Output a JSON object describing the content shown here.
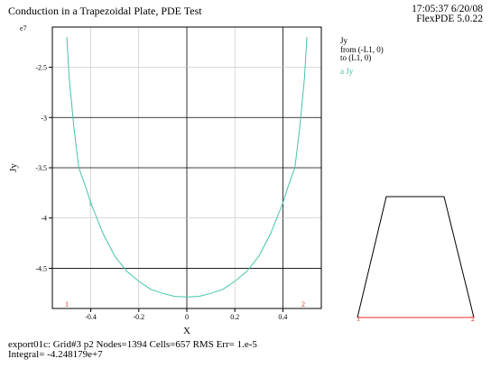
{
  "header": {
    "title": "Conduction in a Trapezoidal Plate, PDE Test",
    "time": "17:05:37 6/20/08",
    "version": "FlexPDE 5.0.22"
  },
  "legend": {
    "variable": "Jy",
    "from": "from (-L1, 0)",
    "to": "to (L1, 0)",
    "series_marker": "a",
    "series_name": "Jy"
  },
  "footer": {
    "line1": "export01c:  Grid#3  p2  Nodes=1394 Cells=657 RMS Err= 1.e-5",
    "line2": "Integral= -4.248179e+7"
  },
  "colors": {
    "curve": "#44c4a8",
    "endpoints": "#e03030",
    "grid": "#c0c0c0",
    "major_grid": "#000000"
  },
  "chart_data": {
    "type": "line",
    "xlabel": "X",
    "ylabel": "Jy",
    "y_exponent_label": "e7",
    "xlim": [
      -0.56,
      0.56
    ],
    "ylim": [
      -4.9,
      -2.1
    ],
    "x_ticks": [
      -0.4,
      -0.2,
      0,
      0.2,
      0.4
    ],
    "x_tick_labels": [
      "-0.4",
      "-0.2",
      "0",
      "0.2",
      "0.4"
    ],
    "y_ticks": [
      -2.5,
      -3,
      -3.5,
      -4,
      -4.5
    ],
    "y_tick_labels": [
      "-2.5",
      "-3",
      "-3.5",
      "-4",
      "-4.5"
    ],
    "major_x": [
      0,
      0.4
    ],
    "major_y": [
      -3,
      -3.5,
      -4.5
    ],
    "series": [
      {
        "name": "Jy",
        "marker": "a",
        "x": [
          -0.5,
          -0.49,
          -0.47,
          -0.45,
          -0.42,
          -0.4,
          -0.35,
          -0.3,
          -0.25,
          -0.2,
          -0.15,
          -0.1,
          -0.05,
          0,
          0.05,
          0.1,
          0.15,
          0.2,
          0.25,
          0.3,
          0.35,
          0.4,
          0.42,
          0.45,
          0.47,
          0.49,
          0.5
        ],
        "y": [
          -2.2,
          -2.6,
          -3.1,
          -3.5,
          -3.7,
          -3.85,
          -4.15,
          -4.38,
          -4.53,
          -4.63,
          -4.71,
          -4.75,
          -4.78,
          -4.785,
          -4.78,
          -4.75,
          -4.71,
          -4.63,
          -4.53,
          -4.38,
          -4.15,
          -3.85,
          -3.7,
          -3.5,
          -3.1,
          -2.6,
          -2.2
        ]
      }
    ],
    "endpoint_labels": [
      "1",
      "2"
    ]
  },
  "inset_data": {
    "vertex_labels": [
      "1",
      "2"
    ]
  }
}
